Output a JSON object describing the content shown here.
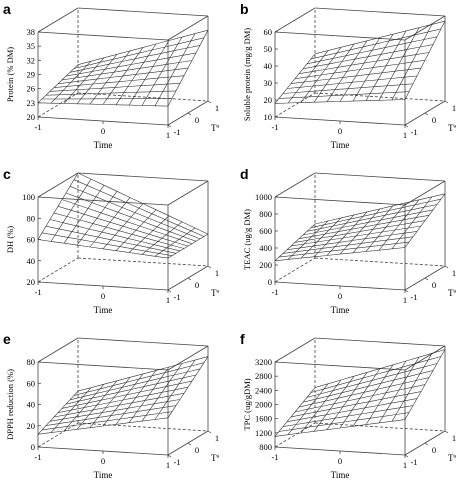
{
  "chart_data": [
    {
      "type": "surface",
      "panel_label": "a",
      "zlabel": "Protein (% DM)",
      "xlabel": "Time",
      "ylabel": "Tª",
      "x_ticks": [
        "-1",
        "0",
        "1"
      ],
      "y_ticks": [
        "-1",
        "0",
        "1"
      ],
      "z_ticks": [
        "20",
        "23",
        "26",
        "29",
        "32",
        "35",
        "38"
      ],
      "zlim": [
        20,
        38
      ],
      "corners": {
        "x_-1_y_-1": 23,
        "x_1_y_-1": 24,
        "x_-1_y_1": 26,
        "x_1_y_1": 35
      }
    },
    {
      "type": "surface",
      "panel_label": "b",
      "zlabel": "Soluble protein (mg/g DM)",
      "xlabel": "Time",
      "ylabel": "Tª",
      "x_ticks": [
        "-1",
        "0",
        "1"
      ],
      "y_ticks": [
        "-1",
        "0",
        "1"
      ],
      "z_ticks": [
        "10",
        "20",
        "30",
        "40",
        "50",
        "60"
      ],
      "zlim": [
        10,
        60
      ],
      "corners": {
        "x_-1_y_-1": 18,
        "x_1_y_-1": 25,
        "x_-1_y_1": 33,
        "x_1_y_1": 57
      }
    },
    {
      "type": "surface",
      "panel_label": "c",
      "zlabel": "DH (%)",
      "xlabel": "Time",
      "ylabel": "Tª",
      "x_ticks": [
        "-1",
        "0",
        "1"
      ],
      "y_ticks": [
        "-1",
        "0",
        "1"
      ],
      "z_ticks": [
        "20",
        "40",
        "60",
        "80",
        "100"
      ],
      "zlim": [
        20,
        100
      ],
      "corners": {
        "x_-1_y_-1": 60,
        "x_1_y_-1": 50,
        "x_-1_y_1": 100,
        "x_1_y_1": 50
      }
    },
    {
      "type": "surface",
      "panel_label": "d",
      "zlabel": "TEAC (ug/g DM)",
      "xlabel": "Time",
      "ylabel": "Tª",
      "x_ticks": [
        "-1",
        "0",
        "1"
      ],
      "y_ticks": [
        "-1",
        "0",
        "1"
      ],
      "z_ticks": [
        "0",
        "200",
        "400",
        "600",
        "800",
        "1000"
      ],
      "zlim": [
        0,
        1000
      ],
      "corners": {
        "x_-1_y_-1": 250,
        "x_1_y_-1": 500,
        "x_-1_y_1": 400,
        "x_1_y_1": 850
      }
    },
    {
      "type": "surface",
      "panel_label": "e",
      "zlabel": "DPPH reduction (%)",
      "xlabel": "Time",
      "ylabel": "Tª",
      "x_ticks": [
        "-1",
        "0",
        "1"
      ],
      "y_ticks": [
        "-1",
        "0",
        "1"
      ],
      "z_ticks": [
        "0",
        "20",
        "40",
        "60",
        "80"
      ],
      "zlim": [
        0,
        80
      ],
      "corners": {
        "x_-1_y_-1": 12,
        "x_1_y_-1": 35,
        "x_-1_y_1": 30,
        "x_1_y_1": 70
      }
    },
    {
      "type": "surface",
      "panel_label": "f",
      "zlabel": "TPC (ug/gDM)",
      "xlabel": "Time",
      "ylabel": "Tª",
      "x_ticks": [
        "-1",
        "0",
        "1"
      ],
      "y_ticks": [
        "-1",
        "0",
        "1"
      ],
      "z_ticks": [
        "800",
        "1200",
        "1600",
        "2000",
        "2400",
        "2800",
        "3200"
      ],
      "zlim": [
        800,
        3200
      ],
      "corners": {
        "x_-1_y_-1": 1100,
        "x_1_y_-1": 1800,
        "x_-1_y_1": 1800,
        "x_1_y_1": 3100
      }
    }
  ]
}
